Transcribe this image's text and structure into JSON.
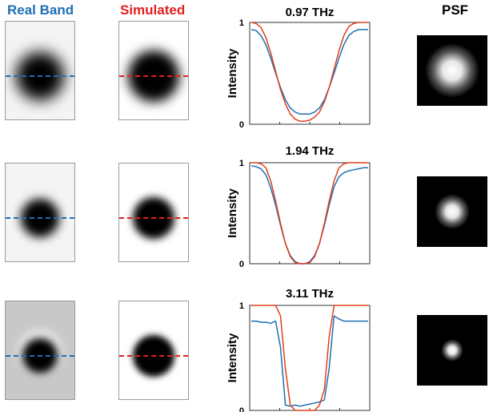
{
  "headers": {
    "real": "Real Band",
    "simulated": "Simulated",
    "psf": "PSF"
  },
  "colors": {
    "real": "#1f6fb4",
    "simulated": "#e0401a",
    "profile_line_real": "#1f6fb4",
    "profile_line_sim": "#e02020"
  },
  "ylabel": "Intensity",
  "chart_data": [
    {
      "type": "line",
      "title": "0.97 THz",
      "ylabel": "Intensity",
      "yticks": [
        "0",
        "1"
      ],
      "ylim": [
        0,
        1
      ],
      "x": [
        0,
        1,
        2,
        3,
        4,
        5,
        6,
        7,
        8,
        9,
        10,
        11,
        12,
        13,
        14,
        15,
        16,
        17,
        18,
        19,
        20,
        21,
        22,
        23,
        24
      ],
      "series": [
        {
          "values": [
            0.93,
            0.92,
            0.87,
            0.78,
            0.65,
            0.5,
            0.36,
            0.24,
            0.16,
            0.12,
            0.1,
            0.1,
            0.1,
            0.12,
            0.16,
            0.24,
            0.36,
            0.5,
            0.65,
            0.78,
            0.87,
            0.91,
            0.93,
            0.93,
            0.93
          ]
        },
        {
          "values": [
            1.0,
            0.99,
            0.95,
            0.85,
            0.7,
            0.52,
            0.34,
            0.2,
            0.1,
            0.05,
            0.03,
            0.03,
            0.04,
            0.07,
            0.12,
            0.22,
            0.36,
            0.54,
            0.72,
            0.87,
            0.96,
            0.99,
            1.0,
            1.0,
            1.0
          ]
        }
      ]
    },
    {
      "type": "line",
      "title": "1.94 THz",
      "ylabel": "Intensity",
      "yticks": [
        "0",
        "1"
      ],
      "ylim": [
        0,
        1
      ],
      "x": [
        0,
        1,
        2,
        3,
        4,
        5,
        6,
        7,
        8,
        9,
        10,
        11,
        12,
        13,
        14,
        15,
        16,
        17,
        18,
        19,
        20,
        21,
        22,
        23,
        24
      ],
      "series": [
        {
          "values": [
            0.97,
            0.96,
            0.94,
            0.88,
            0.75,
            0.58,
            0.38,
            0.2,
            0.08,
            0.02,
            0.0,
            0.0,
            0.02,
            0.08,
            0.2,
            0.38,
            0.58,
            0.76,
            0.86,
            0.9,
            0.92,
            0.93,
            0.94,
            0.95,
            0.95
          ]
        },
        {
          "values": [
            1.0,
            1.0,
            0.99,
            0.95,
            0.82,
            0.62,
            0.4,
            0.2,
            0.07,
            0.01,
            0.0,
            0.0,
            0.01,
            0.07,
            0.2,
            0.4,
            0.62,
            0.82,
            0.95,
            0.99,
            1.0,
            1.0,
            1.0,
            1.0,
            1.0
          ]
        }
      ]
    },
    {
      "type": "line",
      "title": "3.11 THz",
      "ylabel": "Intensity",
      "yticks": [
        "0",
        "1"
      ],
      "ylim": [
        0,
        1
      ],
      "x": [
        0,
        1,
        2,
        3,
        4,
        5,
        6,
        7,
        8,
        9,
        10,
        11,
        12,
        13,
        14,
        15,
        16,
        17,
        18,
        19,
        20,
        21,
        22,
        23,
        24
      ],
      "series": [
        {
          "values": [
            0.85,
            0.85,
            0.84,
            0.84,
            0.83,
            0.85,
            0.6,
            0.05,
            0.04,
            0.05,
            0.04,
            0.05,
            0.06,
            0.07,
            0.08,
            0.1,
            0.4,
            0.9,
            0.87,
            0.85,
            0.85,
            0.85,
            0.85,
            0.85,
            0.85
          ]
        },
        {
          "values": [
            1.0,
            1.0,
            1.0,
            1.0,
            1.0,
            1.0,
            0.9,
            0.4,
            0.05,
            0.0,
            0.0,
            0.0,
            0.0,
            0.0,
            0.05,
            0.2,
            0.7,
            1.0,
            1.0,
            1.0,
            1.0,
            1.0,
            1.0,
            1.0,
            1.0
          ]
        }
      ]
    }
  ]
}
